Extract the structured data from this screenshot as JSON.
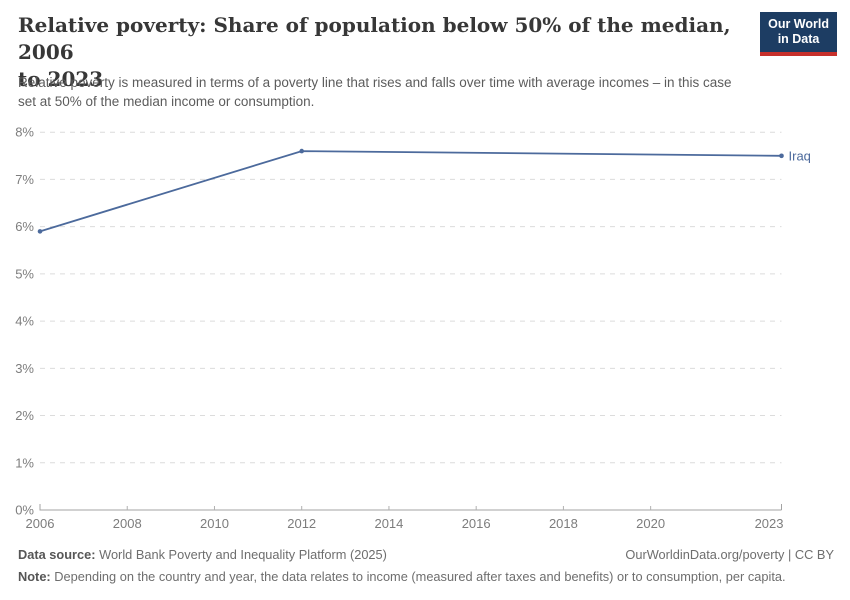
{
  "header": {
    "title": "Relative poverty: Share of population below 50% of the median, 2006 to 2023",
    "title_line1": "Relative poverty: Share of population below 50% of the median, 2006",
    "title_line2": "to 2023",
    "logo": {
      "line1": "Our World",
      "line2": "in Data"
    }
  },
  "subtitle": {
    "line1": "Relative poverty is measured in terms of a poverty line that rises and falls over time with average incomes – in this case",
    "line2": "set at 50% of the median income or consumption."
  },
  "chart_data": {
    "type": "line",
    "title": "Relative poverty: Share of population below 50% of the median, 2006 to 2023",
    "series": [
      {
        "name": "Iraq",
        "x": [
          2006,
          2012,
          2023
        ],
        "values": [
          5.9,
          7.6,
          7.5
        ],
        "color": "#4C6A9C"
      }
    ],
    "x_ticks": [
      2006,
      2008,
      2010,
      2012,
      2014,
      2016,
      2018,
      2020,
      2023
    ],
    "y_ticks": [
      0,
      1,
      2,
      3,
      4,
      5,
      6,
      7,
      8
    ],
    "y_tick_suffix": "%",
    "xlim": [
      2006,
      2023
    ],
    "ylim": [
      0,
      8
    ],
    "xlabel": "",
    "ylabel": "",
    "grid": "horizontal-dashed",
    "legend_position": "end-of-line-label"
  },
  "footer": {
    "data_source_label": "Data source:",
    "data_source": "World Bank Poverty and Inequality Platform (2025)",
    "attribution": "OurWorldinData.org/poverty | CC BY",
    "note_label": "Note:",
    "note": "Depending on the country and year, the data relates to income (measured after taxes and benefits) or to consumption, per capita."
  },
  "colors": {
    "accent_line": "#4C6A9C",
    "logo_navy": "#1d3d63",
    "logo_red": "#c7302b",
    "grid": "#dcdcdc",
    "axis_text": "#7d7d7d"
  }
}
